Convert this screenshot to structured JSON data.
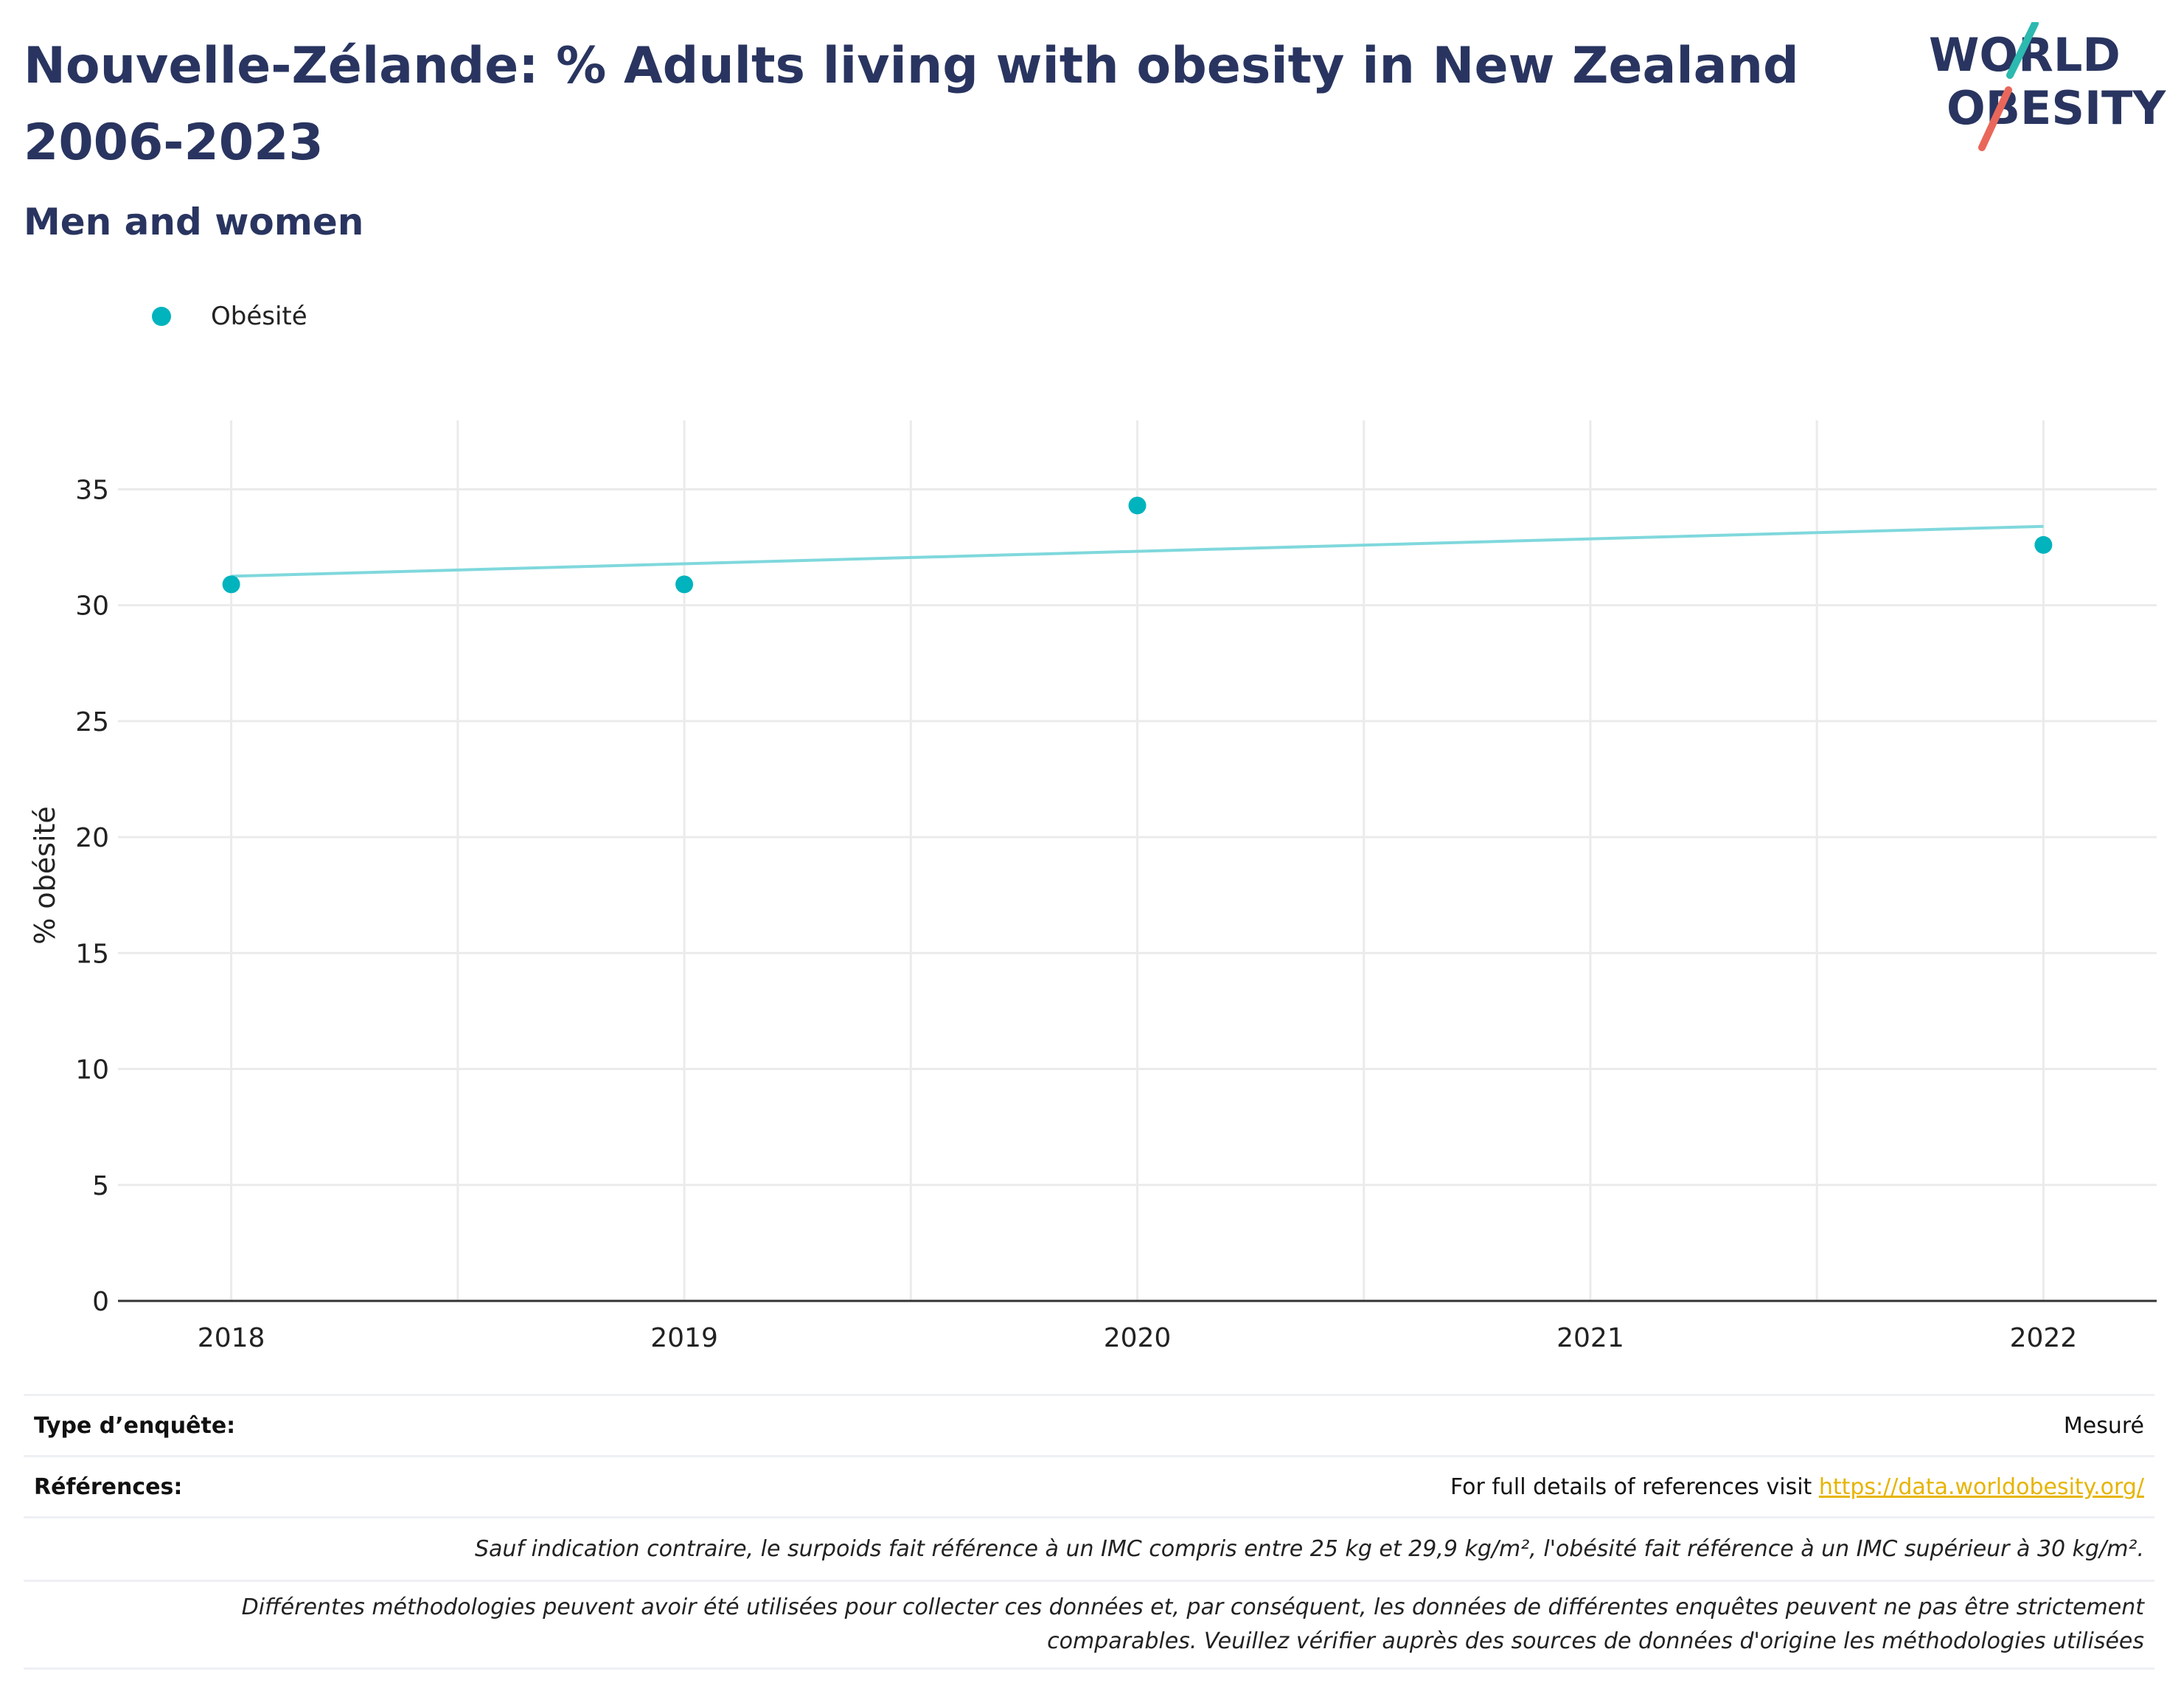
{
  "header": {
    "title": "Nouvelle-Zélande: % Adults living with obesity in New Zealand 2006-2023",
    "subtitle": "Men and women",
    "logo": {
      "line1": "WORLD",
      "line2": "OBESITY"
    }
  },
  "colors": {
    "title": "#293560",
    "series": "#00b3bd",
    "trend": "#7fd8dc",
    "logo_teal": "#2cb9b0",
    "logo_red": "#e9675a",
    "link": "#e6b400"
  },
  "chart_data": {
    "type": "scatter",
    "ylabel": "% obésité",
    "xlabel": "",
    "x_ticks": [
      "2018",
      "2019",
      "2020",
      "2021",
      "2022"
    ],
    "y_ticks": [
      0,
      5,
      10,
      15,
      20,
      25,
      30,
      35
    ],
    "xlim": [
      2017.75,
      2022.25
    ],
    "ylim": [
      0,
      36.7
    ],
    "grid": true,
    "legend": "top-left",
    "series": [
      {
        "name": "Obésité",
        "x": [
          2018,
          2019,
          2020,
          2022
        ],
        "y": [
          30.9,
          30.9,
          34.3,
          32.6
        ]
      }
    ],
    "trendline": {
      "x": [
        2018,
        2022
      ],
      "y": [
        31.25,
        33.4
      ]
    }
  },
  "table": {
    "survey_type_label": "Type d’enquête:",
    "survey_type_value": "Mesuré",
    "references_label": "Références:",
    "references_text": "For full details of references visit ",
    "references_link": "https://data.worldobesity.org/",
    "note1": "Sauf indication contraire, le surpoids fait référence à un IMC compris entre 25 kg et 29,9 kg/m², l'obésité fait référence à un IMC supérieur à 30 kg/m².",
    "note2_line1": "Différentes méthodologies peuvent avoir été utilisées pour collecter ces données et, par conséquent, les données de différentes enquêtes peuvent ne pas être strictement",
    "note2_line2": "comparables. Veuillez vérifier auprès des sources de données d'origine les méthodologies utilisées"
  }
}
